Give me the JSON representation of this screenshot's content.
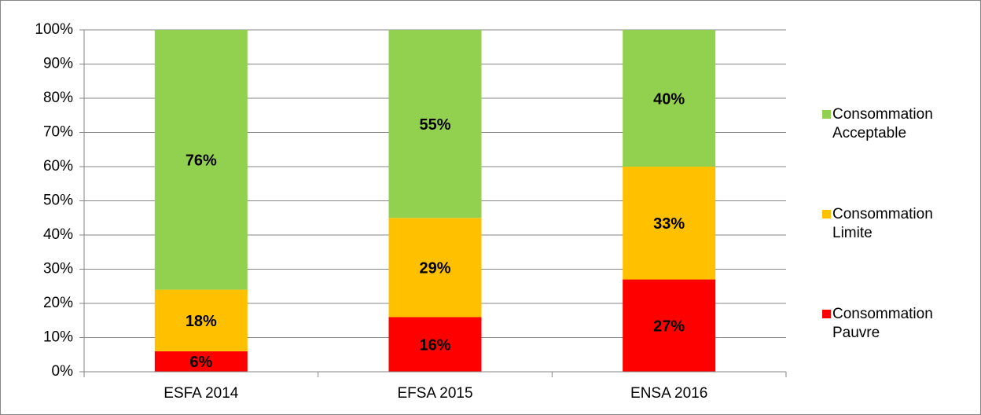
{
  "chart_data": {
    "type": "stacked_bar",
    "categories": [
      "ESFA 2014",
      "EFSA 2015",
      "ENSA 2016"
    ],
    "series": [
      {
        "name": "Consommation Pauvre",
        "color": "#ff0000",
        "values": [
          6,
          16,
          27
        ],
        "value_labels": [
          "6%",
          "16%",
          "27%"
        ]
      },
      {
        "name": "Consommation Limite",
        "color": "#ffc000",
        "values": [
          18,
          29,
          33
        ],
        "value_labels": [
          "18%",
          "29%",
          "33%"
        ]
      },
      {
        "name": "Consommation Acceptable",
        "color": "#92d050",
        "values": [
          76,
          55,
          40
        ],
        "value_labels": [
          "76%",
          "55%",
          "40%"
        ]
      }
    ],
    "ylim": [
      0,
      100
    ],
    "yticks": [
      {
        "value": 0,
        "label": "0%"
      },
      {
        "value": 10,
        "label": "10%"
      },
      {
        "value": 20,
        "label": "20%"
      },
      {
        "value": 30,
        "label": "30%"
      },
      {
        "value": 40,
        "label": "40%"
      },
      {
        "value": 50,
        "label": "50%"
      },
      {
        "value": 60,
        "label": "60%"
      },
      {
        "value": 70,
        "label": "70%"
      },
      {
        "value": 80,
        "label": "80%"
      },
      {
        "value": 90,
        "label": "90%"
      },
      {
        "value": 100,
        "label": "100%"
      }
    ],
    "grid": true,
    "legend": "right"
  }
}
